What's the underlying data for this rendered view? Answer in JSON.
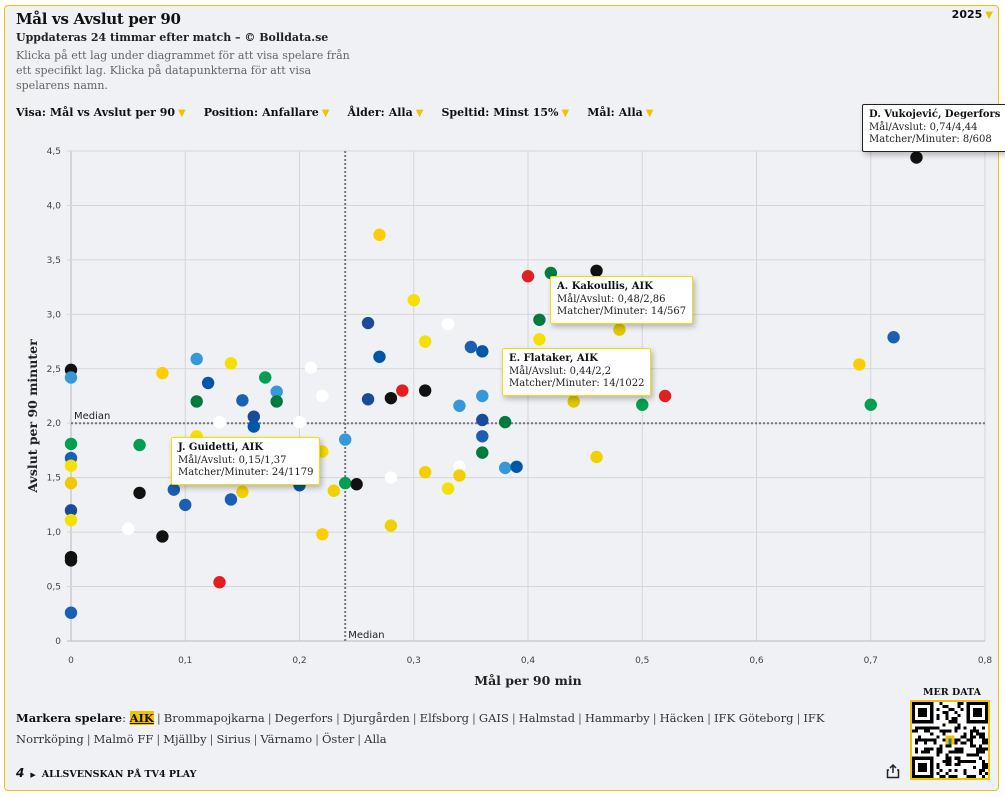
{
  "header": {
    "title": "Mål vs Avslut per 90",
    "subtitle": "Uppdateras 24 timmar efter match – © Bolldata.se",
    "description": "Klicka på ett lag under diagrammet för att visa spelare från ett specifikt lag. Klicka på datapunkterna för att visa spelarens namn.",
    "year": "2025"
  },
  "filters": [
    {
      "label": "Visa:",
      "value": "Mål vs Avslut per 90"
    },
    {
      "label": "Position:",
      "value": "Anfallare"
    },
    {
      "label": "Ålder:",
      "value": "Alla"
    },
    {
      "label": "Speltid:",
      "value": "Minst 15%"
    },
    {
      "label": "Mål:",
      "value": "Alla"
    }
  ],
  "icons": {
    "dropdown": "triangle-down-icon",
    "share": "share-icon",
    "qr": "qr-code-icon",
    "tv4": "tv4-logo-icon"
  },
  "colors": {
    "accent": "#f2c200",
    "background": "#f0f1f5"
  },
  "chart_data": {
    "type": "scatter",
    "title": "Mål vs Avslut per 90",
    "xlabel": "Mål per 90 min",
    "ylabel": "Avslut per 90 minuter",
    "xlim": [
      0,
      0.8
    ],
    "ylim": [
      0,
      4.5
    ],
    "xticks": [
      "0",
      "0,1",
      "0,2",
      "0,3",
      "0,4",
      "0,5",
      "0,6",
      "0,7",
      "0,8"
    ],
    "yticks": [
      "0",
      "0,5",
      "1,0",
      "1,5",
      "2,0",
      "2,5",
      "3,0",
      "3,5",
      "4,0",
      "4,5"
    ],
    "grid": true,
    "median_x": 0.24,
    "median_y": 2.0,
    "median_label": "Median",
    "points": [
      {
        "x": 0.0,
        "y": 2.49,
        "color": "#111111"
      },
      {
        "x": 0.0,
        "y": 2.42,
        "color": "#3498db"
      },
      {
        "x": 0.0,
        "y": 1.81,
        "color": "#00a050"
      },
      {
        "x": 0.0,
        "y": 1.68,
        "color": "#1a5fb4"
      },
      {
        "x": 0.0,
        "y": 1.61,
        "color": "#f5e000"
      },
      {
        "x": 0.0,
        "y": 1.45,
        "color": "#f2c800"
      },
      {
        "x": 0.0,
        "y": 1.2,
        "color": "#1a4a9a"
      },
      {
        "x": 0.0,
        "y": 1.11,
        "color": "#f5e000"
      },
      {
        "x": 0.0,
        "y": 0.77,
        "color": "#111111"
      },
      {
        "x": 0.0,
        "y": 0.74,
        "color": "#111111"
      },
      {
        "x": 0.0,
        "y": 0.26,
        "color": "#1a5fb4"
      },
      {
        "x": 0.08,
        "y": 2.46,
        "color": "#ffcc00"
      },
      {
        "x": 0.06,
        "y": 1.8,
        "color": "#00a050"
      },
      {
        "x": 0.06,
        "y": 1.36,
        "color": "#111111"
      },
      {
        "x": 0.05,
        "y": 1.03,
        "color": "#ffffff"
      },
      {
        "x": 0.08,
        "y": 0.96,
        "color": "#111111"
      },
      {
        "x": 0.09,
        "y": 1.39,
        "color": "#1a5fb4"
      },
      {
        "x": 0.1,
        "y": 1.25,
        "color": "#1a5fb4"
      },
      {
        "x": 0.11,
        "y": 2.59,
        "color": "#3498db"
      },
      {
        "x": 0.11,
        "y": 2.2,
        "color": "#007a3d"
      },
      {
        "x": 0.11,
        "y": 1.88,
        "color": "#f5e000"
      },
      {
        "x": 0.12,
        "y": 2.37,
        "color": "#0057a8"
      },
      {
        "x": 0.13,
        "y": 2.01,
        "color": "#ffffff"
      },
      {
        "x": 0.13,
        "y": 0.54,
        "color": "#e02020"
      },
      {
        "x": 0.14,
        "y": 2.55,
        "color": "#f5e000"
      },
      {
        "x": 0.14,
        "y": 1.3,
        "color": "#1a5fb4"
      },
      {
        "x": 0.15,
        "y": 2.21,
        "color": "#1a5fb4"
      },
      {
        "x": 0.15,
        "y": 1.37,
        "color": "#f2d000"
      },
      {
        "x": 0.16,
        "y": 2.06,
        "color": "#1a4a9a"
      },
      {
        "x": 0.16,
        "y": 1.97,
        "color": "#0057a8"
      },
      {
        "x": 0.17,
        "y": 2.42,
        "color": "#00a050"
      },
      {
        "x": 0.18,
        "y": 2.29,
        "color": "#3498db"
      },
      {
        "x": 0.18,
        "y": 2.2,
        "color": "#007a3d"
      },
      {
        "x": 0.2,
        "y": 2.01,
        "color": "#ffffff"
      },
      {
        "x": 0.2,
        "y": 1.43,
        "color": "#0057a8"
      },
      {
        "x": 0.21,
        "y": 2.51,
        "color": "#ffffff"
      },
      {
        "x": 0.22,
        "y": 2.25,
        "color": "#ffffff"
      },
      {
        "x": 0.22,
        "y": 1.74,
        "color": "#f5e000"
      },
      {
        "x": 0.22,
        "y": 0.98,
        "color": "#ffcc00"
      },
      {
        "x": 0.23,
        "y": 1.38,
        "color": "#f2d000"
      },
      {
        "x": 0.24,
        "y": 1.85,
        "color": "#3498db"
      },
      {
        "x": 0.24,
        "y": 1.45,
        "color": "#00a050"
      },
      {
        "x": 0.25,
        "y": 1.44,
        "color": "#111111"
      },
      {
        "x": 0.26,
        "y": 2.92,
        "color": "#1a4a9a"
      },
      {
        "x": 0.26,
        "y": 2.22,
        "color": "#1a4a9a"
      },
      {
        "x": 0.27,
        "y": 3.73,
        "color": "#ffcc00"
      },
      {
        "x": 0.27,
        "y": 2.61,
        "color": "#0057a8"
      },
      {
        "x": 0.28,
        "y": 2.23,
        "color": "#111111"
      },
      {
        "x": 0.28,
        "y": 1.5,
        "color": "#ffffff"
      },
      {
        "x": 0.28,
        "y": 1.06,
        "color": "#f2d000"
      },
      {
        "x": 0.29,
        "y": 2.3,
        "color": "#e02020"
      },
      {
        "x": 0.3,
        "y": 3.13,
        "color": "#f5e000"
      },
      {
        "x": 0.31,
        "y": 2.75,
        "color": "#f5e000"
      },
      {
        "x": 0.31,
        "y": 2.3,
        "color": "#111111"
      },
      {
        "x": 0.31,
        "y": 1.55,
        "color": "#f2d000"
      },
      {
        "x": 0.33,
        "y": 2.91,
        "color": "#ffffff"
      },
      {
        "x": 0.33,
        "y": 1.4,
        "color": "#f5e000"
      },
      {
        "x": 0.34,
        "y": 2.16,
        "color": "#3498db"
      },
      {
        "x": 0.34,
        "y": 1.6,
        "color": "#ffffff"
      },
      {
        "x": 0.34,
        "y": 1.52,
        "color": "#f2d000"
      },
      {
        "x": 0.35,
        "y": 2.7,
        "color": "#1a5fb4"
      },
      {
        "x": 0.36,
        "y": 2.66,
        "color": "#0057a8"
      },
      {
        "x": 0.36,
        "y": 2.25,
        "color": "#3498db"
      },
      {
        "x": 0.36,
        "y": 2.03,
        "color": "#1a4a9a"
      },
      {
        "x": 0.36,
        "y": 1.88,
        "color": "#1a5fb4"
      },
      {
        "x": 0.36,
        "y": 1.73,
        "color": "#007a3d"
      },
      {
        "x": 0.38,
        "y": 2.01,
        "color": "#007a3d"
      },
      {
        "x": 0.38,
        "y": 1.59,
        "color": "#3498db"
      },
      {
        "x": 0.39,
        "y": 1.6,
        "color": "#0057a8"
      },
      {
        "x": 0.4,
        "y": 3.35,
        "color": "#e02020"
      },
      {
        "x": 0.41,
        "y": 2.95,
        "color": "#007a3d"
      },
      {
        "x": 0.41,
        "y": 2.77,
        "color": "#f5e000"
      },
      {
        "x": 0.42,
        "y": 3.38,
        "color": "#007a3d"
      },
      {
        "x": 0.44,
        "y": 2.2,
        "color": "#e0c800"
      },
      {
        "x": 0.46,
        "y": 3.4,
        "color": "#111111"
      },
      {
        "x": 0.46,
        "y": 1.69,
        "color": "#f2d000"
      },
      {
        "x": 0.48,
        "y": 2.86,
        "color": "#e0c800"
      },
      {
        "x": 0.5,
        "y": 2.17,
        "color": "#00a050"
      },
      {
        "x": 0.52,
        "y": 2.25,
        "color": "#e02020"
      },
      {
        "x": 0.69,
        "y": 2.54,
        "color": "#ffcc00"
      },
      {
        "x": 0.7,
        "y": 2.17,
        "color": "#00a050"
      },
      {
        "x": 0.72,
        "y": 2.79,
        "color": "#1a5fb4"
      },
      {
        "x": 0.74,
        "y": 4.44,
        "color": "#111111"
      }
    ],
    "tooltips": [
      {
        "name": "D. Vukojević, Degerfors",
        "line1": "Mål/Avslut: 0,74/4,44",
        "line2": "Matcher/Minuter: 8/608",
        "style": "dark"
      },
      {
        "name": "A. Kakoullis, AIK",
        "line1": "Mål/Avslut: 0,48/2,86",
        "line2": "Matcher/Minuter: 14/567",
        "style": "highlight"
      },
      {
        "name": "E. Flataker, AIK",
        "line1": "Mål/Avslut: 0,44/2,2",
        "line2": "Matcher/Minuter: 14/1022",
        "style": "highlight"
      },
      {
        "name": "J. Guidetti, AIK",
        "line1": "Mål/Avslut: 0,15/1,37",
        "line2": "Matcher/Minuter: 24/1179",
        "style": "highlight"
      }
    ]
  },
  "teams": {
    "lead": "Markera spelare",
    "active": "AIK",
    "list": [
      "AIK",
      "Brommapojkarna",
      "Degerfors",
      "Djurgården",
      "Elfsborg",
      "GAIS",
      "Halmstad",
      "Hammarby",
      "Häcken",
      "IFK Göteborg",
      "IFK Norrköping",
      "Malmö FF",
      "Mjällby",
      "Sirius",
      "Värnamo",
      "Öster",
      "Alla"
    ]
  },
  "footer": {
    "tv4_logo": "4",
    "tv4_label": "ALLSVENSKAN PÅ TV4 PLAY",
    "mer_data": "MER DATA",
    "share_glyph": "⇧"
  }
}
